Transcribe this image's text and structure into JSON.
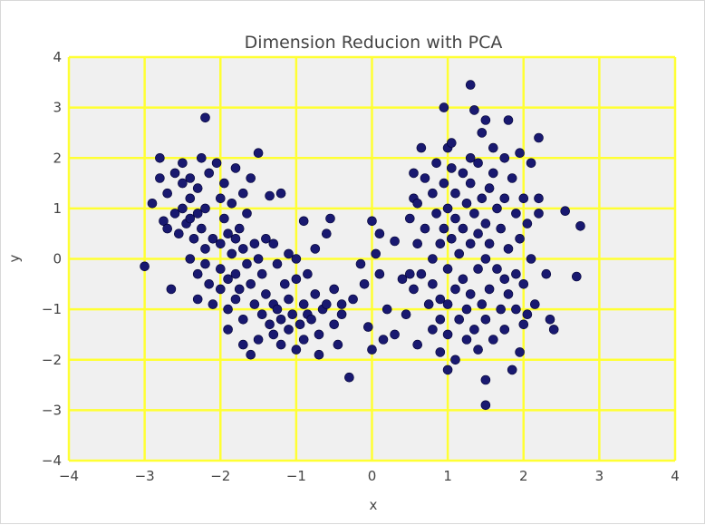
{
  "chart_data": {
    "type": "scatter",
    "title": "Dimension Reducion with PCA",
    "xlabel": "x",
    "ylabel": "y",
    "xlim": [
      -4,
      4
    ],
    "ylim": [
      -4,
      4
    ],
    "x_ticks": [
      -4,
      -3,
      -2,
      -1,
      0,
      1,
      2,
      3,
      4
    ],
    "y_ticks": [
      -4,
      -3,
      -2,
      -1,
      0,
      1,
      2,
      3,
      4
    ],
    "x_tick_labels": [
      "−4",
      "−3",
      "−2",
      "−1",
      "0",
      "1",
      "2",
      "3",
      "4"
    ],
    "y_tick_labels": [
      "−4",
      "−3",
      "−2",
      "−1",
      "0",
      "1",
      "2",
      "3",
      "4"
    ],
    "grid": true,
    "colors": {
      "background": "#f0f0f0",
      "grid": "#ffff33",
      "marker": "#191970"
    },
    "points": [
      [
        -3.0,
        -0.15
      ],
      [
        -2.9,
        1.1
      ],
      [
        -2.8,
        2.0
      ],
      [
        -2.8,
        1.6
      ],
      [
        -2.75,
        0.75
      ],
      [
        -2.7,
        1.3
      ],
      [
        -2.7,
        0.6
      ],
      [
        -2.65,
        -0.6
      ],
      [
        -2.6,
        1.7
      ],
      [
        -2.6,
        0.9
      ],
      [
        -2.55,
        0.5
      ],
      [
        -2.5,
        1.9
      ],
      [
        -2.5,
        1.5
      ],
      [
        -2.5,
        1.0
      ],
      [
        -2.45,
        0.7
      ],
      [
        -2.4,
        1.6
      ],
      [
        -2.4,
        1.2
      ],
      [
        -2.4,
        0.8
      ],
      [
        -2.4,
        0.0
      ],
      [
        -2.35,
        0.4
      ],
      [
        -2.3,
        1.4
      ],
      [
        -2.3,
        0.9
      ],
      [
        -2.3,
        -0.3
      ],
      [
        -2.3,
        -0.8
      ],
      [
        -2.25,
        2.0
      ],
      [
        -2.25,
        0.6
      ],
      [
        -2.2,
        2.8
      ],
      [
        -2.2,
        1.0
      ],
      [
        -2.2,
        0.2
      ],
      [
        -2.2,
        -0.1
      ],
      [
        -2.15,
        1.7
      ],
      [
        -2.15,
        -0.5
      ],
      [
        -2.1,
        0.4
      ],
      [
        -2.1,
        -0.9
      ],
      [
        -2.05,
        1.9
      ],
      [
        -2.0,
        1.2
      ],
      [
        -2.0,
        0.3
      ],
      [
        -2.0,
        -0.2
      ],
      [
        -2.0,
        -0.6
      ],
      [
        -1.95,
        1.5
      ],
      [
        -1.95,
        0.8
      ],
      [
        -1.9,
        0.5
      ],
      [
        -1.9,
        -0.4
      ],
      [
        -1.9,
        -1.0
      ],
      [
        -1.9,
        -1.4
      ],
      [
        -1.85,
        1.1
      ],
      [
        -1.85,
        0.1
      ],
      [
        -1.8,
        1.8
      ],
      [
        -1.8,
        0.4
      ],
      [
        -1.8,
        -0.3
      ],
      [
        -1.8,
        -0.8
      ],
      [
        -1.75,
        0.6
      ],
      [
        -1.75,
        -0.6
      ],
      [
        -1.7,
        1.3
      ],
      [
        -1.7,
        0.2
      ],
      [
        -1.7,
        -1.2
      ],
      [
        -1.7,
        -1.7
      ],
      [
        -1.65,
        0.9
      ],
      [
        -1.65,
        -0.1
      ],
      [
        -1.6,
        1.6
      ],
      [
        -1.6,
        -0.5
      ],
      [
        -1.6,
        -1.9
      ],
      [
        -1.55,
        0.3
      ],
      [
        -1.55,
        -0.9
      ],
      [
        -1.5,
        2.1
      ],
      [
        -1.5,
        0.0
      ],
      [
        -1.5,
        -1.6
      ],
      [
        -1.45,
        -0.3
      ],
      [
        -1.45,
        -1.1
      ],
      [
        -1.4,
        0.4
      ],
      [
        -1.4,
        -0.7
      ],
      [
        -1.35,
        1.25
      ],
      [
        -1.35,
        -1.3
      ],
      [
        -1.3,
        0.3
      ],
      [
        -1.3,
        -0.9
      ],
      [
        -1.3,
        -1.5
      ],
      [
        -1.25,
        -0.1
      ],
      [
        -1.25,
        -1.0
      ],
      [
        -1.2,
        1.3
      ],
      [
        -1.2,
        -1.2
      ],
      [
        -1.2,
        -1.7
      ],
      [
        -1.15,
        -0.5
      ],
      [
        -1.1,
        0.1
      ],
      [
        -1.1,
        -0.8
      ],
      [
        -1.1,
        -1.4
      ],
      [
        -1.05,
        -1.1
      ],
      [
        -1.0,
        0.0
      ],
      [
        -1.0,
        -0.4
      ],
      [
        -1.0,
        -1.8
      ],
      [
        -0.95,
        -1.3
      ],
      [
        -0.9,
        0.75
      ],
      [
        -0.9,
        -0.9
      ],
      [
        -0.9,
        -1.6
      ],
      [
        -0.85,
        -0.3
      ],
      [
        -0.85,
        -1.1
      ],
      [
        -0.8,
        -1.2
      ],
      [
        -0.75,
        0.2
      ],
      [
        -0.75,
        -0.7
      ],
      [
        -0.7,
        -1.5
      ],
      [
        -0.7,
        -1.9
      ],
      [
        -0.65,
        -1.0
      ],
      [
        -0.6,
        0.5
      ],
      [
        -0.6,
        -0.9
      ],
      [
        -0.55,
        0.8
      ],
      [
        -0.5,
        -1.3
      ],
      [
        -0.5,
        -0.6
      ],
      [
        -0.45,
        -1.7
      ],
      [
        -0.4,
        -0.9
      ],
      [
        -0.4,
        -1.1
      ],
      [
        -0.3,
        -2.35
      ],
      [
        -0.25,
        -0.8
      ],
      [
        -0.15,
        -0.1
      ],
      [
        -0.1,
        -0.5
      ],
      [
        -0.05,
        -1.35
      ],
      [
        0.0,
        0.75
      ],
      [
        0.0,
        -1.8
      ],
      [
        0.05,
        0.1
      ],
      [
        0.1,
        0.5
      ],
      [
        0.1,
        -0.3
      ],
      [
        0.15,
        -1.6
      ],
      [
        0.2,
        -1.0
      ],
      [
        0.3,
        0.35
      ],
      [
        0.3,
        -1.5
      ],
      [
        0.4,
        -0.4
      ],
      [
        0.45,
        -1.1
      ],
      [
        0.5,
        -0.3
      ],
      [
        0.5,
        0.8
      ],
      [
        0.55,
        1.7
      ],
      [
        0.55,
        1.2
      ],
      [
        0.55,
        -0.6
      ],
      [
        0.6,
        1.1
      ],
      [
        0.6,
        0.3
      ],
      [
        0.6,
        -1.7
      ],
      [
        0.65,
        2.2
      ],
      [
        0.65,
        -0.3
      ],
      [
        0.7,
        1.6
      ],
      [
        0.7,
        0.6
      ],
      [
        0.75,
        -0.9
      ],
      [
        0.8,
        1.3
      ],
      [
        0.8,
        0.0
      ],
      [
        0.8,
        -0.5
      ],
      [
        0.8,
        -1.4
      ],
      [
        0.85,
        1.9
      ],
      [
        0.85,
        0.9
      ],
      [
        0.9,
        0.3
      ],
      [
        0.9,
        -0.8
      ],
      [
        0.9,
        -1.2
      ],
      [
        0.9,
        -1.85
      ],
      [
        0.95,
        3.0
      ],
      [
        0.95,
        1.5
      ],
      [
        0.95,
        0.6
      ],
      [
        1.0,
        2.2
      ],
      [
        1.0,
        1.0
      ],
      [
        1.0,
        -0.2
      ],
      [
        1.0,
        -0.9
      ],
      [
        1.0,
        -1.5
      ],
      [
        1.0,
        -2.2
      ],
      [
        1.05,
        2.3
      ],
      [
        1.05,
        1.8
      ],
      [
        1.05,
        0.4
      ],
      [
        1.1,
        1.3
      ],
      [
        1.1,
        0.8
      ],
      [
        1.1,
        -0.6
      ],
      [
        1.1,
        -2.0
      ],
      [
        1.15,
        0.1
      ],
      [
        1.15,
        -1.2
      ],
      [
        1.2,
        1.7
      ],
      [
        1.2,
        0.6
      ],
      [
        1.2,
        -0.4
      ],
      [
        1.25,
        1.1
      ],
      [
        1.25,
        -1.0
      ],
      [
        1.25,
        -1.6
      ],
      [
        1.3,
        3.45
      ],
      [
        1.3,
        2.0
      ],
      [
        1.3,
        1.5
      ],
      [
        1.3,
        0.3
      ],
      [
        1.3,
        -0.7
      ],
      [
        1.35,
        2.95
      ],
      [
        1.35,
        0.9
      ],
      [
        1.35,
        -1.4
      ],
      [
        1.4,
        1.9
      ],
      [
        1.4,
        0.5
      ],
      [
        1.4,
        -0.2
      ],
      [
        1.4,
        -1.8
      ],
      [
        1.45,
        2.5
      ],
      [
        1.45,
        1.2
      ],
      [
        1.45,
        -0.9
      ],
      [
        1.5,
        2.75
      ],
      [
        1.5,
        0.7
      ],
      [
        1.5,
        0.0
      ],
      [
        1.5,
        -1.2
      ],
      [
        1.5,
        -2.4
      ],
      [
        1.5,
        -2.9
      ],
      [
        1.55,
        1.4
      ],
      [
        1.55,
        0.3
      ],
      [
        1.55,
        -0.6
      ],
      [
        1.6,
        2.2
      ],
      [
        1.6,
        1.7
      ],
      [
        1.6,
        -1.6
      ],
      [
        1.65,
        1.0
      ],
      [
        1.65,
        -0.2
      ],
      [
        1.7,
        0.6
      ],
      [
        1.7,
        -1.0
      ],
      [
        1.75,
        2.0
      ],
      [
        1.75,
        1.2
      ],
      [
        1.75,
        -0.4
      ],
      [
        1.75,
        -1.4
      ],
      [
        1.8,
        2.75
      ],
      [
        1.8,
        0.2
      ],
      [
        1.8,
        -0.7
      ],
      [
        1.85,
        1.6
      ],
      [
        1.85,
        -2.2
      ],
      [
        1.9,
        0.9
      ],
      [
        1.9,
        -0.3
      ],
      [
        1.9,
        -1.0
      ],
      [
        1.95,
        2.1
      ],
      [
        1.95,
        0.4
      ],
      [
        1.95,
        -1.85
      ],
      [
        2.0,
        1.2
      ],
      [
        2.0,
        -0.5
      ],
      [
        2.0,
        -1.3
      ],
      [
        2.05,
        0.7
      ],
      [
        2.05,
        -1.1
      ],
      [
        2.1,
        0.0
      ],
      [
        2.1,
        1.9
      ],
      [
        2.15,
        -0.9
      ],
      [
        2.2,
        2.4
      ],
      [
        2.2,
        1.2
      ],
      [
        2.2,
        0.9
      ],
      [
        2.3,
        -0.3
      ],
      [
        2.35,
        -1.2
      ],
      [
        2.4,
        -1.4
      ],
      [
        2.55,
        0.95
      ],
      [
        2.7,
        -0.35
      ],
      [
        2.75,
        0.65
      ]
    ]
  }
}
